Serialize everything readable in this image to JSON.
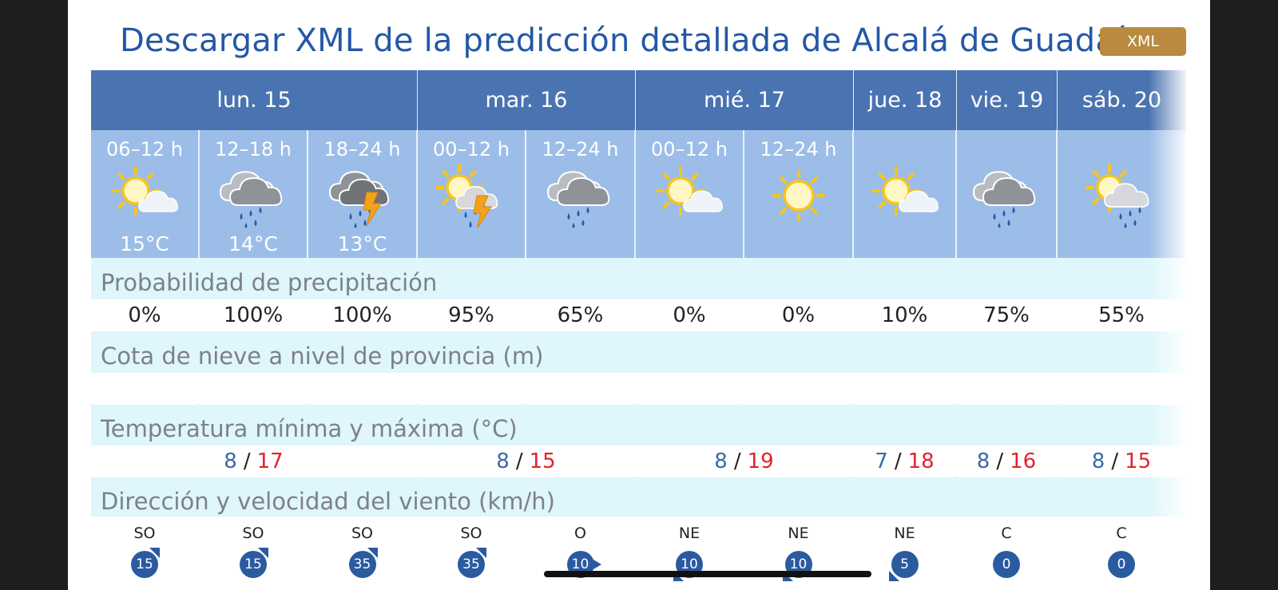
{
  "title": "Descargar XML de la predicción detallada de Alcalá de Guadaíra",
  "xml_button": "XML",
  "days": [
    "lun. 15",
    "mar. 16",
    "mié. 17",
    "jue. 18",
    "vie. 19",
    "sáb. 20"
  ],
  "periods": [
    {
      "time": "06–12 h",
      "temp": "15°C",
      "icon": "sun-cloud-icon"
    },
    {
      "time": "12–18 h",
      "temp": "14°C",
      "icon": "rain-cloud-icon"
    },
    {
      "time": "18–24 h",
      "temp": "13°C",
      "icon": "storm-cloud-icon"
    },
    {
      "time": "00–12 h",
      "temp": "",
      "icon": "sun-storm-rain-icon"
    },
    {
      "time": "12–24 h",
      "temp": "",
      "icon": "rain-cloud-icon"
    },
    {
      "time": "00–12 h",
      "temp": "",
      "icon": "sun-cloud-icon"
    },
    {
      "time": "12–24 h",
      "temp": "",
      "icon": "sun-icon"
    },
    {
      "time": "",
      "temp": "",
      "icon": "sun-cloud-icon"
    },
    {
      "time": "",
      "temp": "",
      "icon": "rain-cloud-icon"
    },
    {
      "time": "",
      "temp": "",
      "icon": "sun-rain-icon"
    }
  ],
  "precip": {
    "label": "Probabilidad de precipitación",
    "values": [
      "0%",
      "100%",
      "100%",
      "95%",
      "65%",
      "0%",
      "0%",
      "10%",
      "75%",
      "55%"
    ]
  },
  "snow": {
    "label": "Cota de nieve a nivel de provincia (m)",
    "values": [
      "",
      "",
      "",
      "",
      "",
      "",
      "",
      "",
      "",
      ""
    ]
  },
  "temps": {
    "label": "Temperatura mínima y máxima (°C)",
    "sep": "/",
    "values": [
      {
        "min": "8",
        "max": "17"
      },
      {
        "min": "8",
        "max": "15"
      },
      {
        "min": "8",
        "max": "19"
      },
      {
        "min": "7",
        "max": "18"
      },
      {
        "min": "8",
        "max": "16"
      },
      {
        "min": "8",
        "max": "15"
      }
    ]
  },
  "wind": {
    "label": "Dirección y velocidad del viento (km/h)",
    "values": [
      {
        "dir": "SO",
        "speed": "15"
      },
      {
        "dir": "SO",
        "speed": "15"
      },
      {
        "dir": "SO",
        "speed": "35"
      },
      {
        "dir": "SO",
        "speed": "35"
      },
      {
        "dir": "O",
        "speed": "10"
      },
      {
        "dir": "NE",
        "speed": "10"
      },
      {
        "dir": "NE",
        "speed": "10"
      },
      {
        "dir": "NE",
        "speed": "5"
      },
      {
        "dir": "C",
        "speed": "0"
      },
      {
        "dir": "C",
        "speed": "0"
      }
    ]
  },
  "colors": {
    "header_blue": "#4a73b1",
    "period_blue": "#9cbde8",
    "band_cyan": "#def6fc",
    "min_temp": "#3b6aa8",
    "max_temp": "#e3232d",
    "xml_button": "#b98a3f"
  }
}
